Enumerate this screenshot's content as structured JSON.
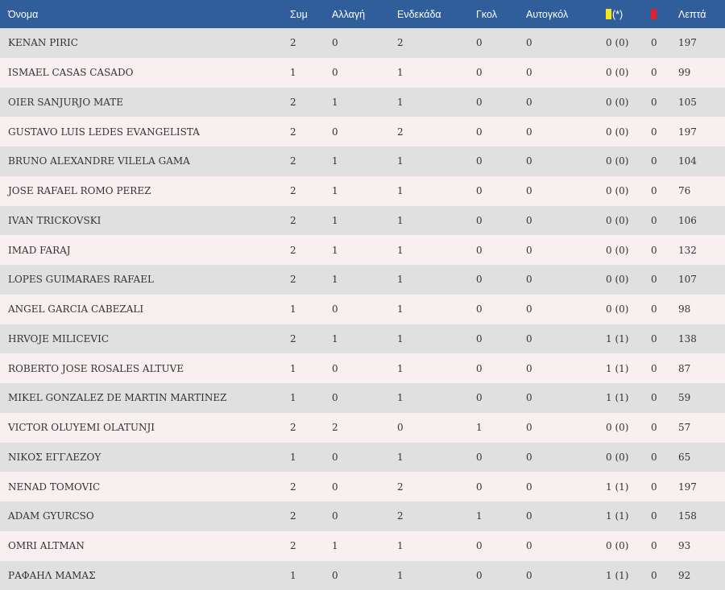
{
  "header": {
    "name": "Όνομα",
    "caps": "Συμ",
    "sub": "Αλλαγή",
    "starting": "Ενδεκάδα",
    "goals": "Γκολ",
    "own_goals": "Αυτογκόλ",
    "yellow_suffix": "(*)",
    "yellow_icon": "yellow-card-icon",
    "red_icon": "red-card-icon",
    "minutes": "Λεπτά"
  },
  "colors": {
    "header_bg": "#2f5e9b",
    "row_odd": "#e0e0e0",
    "row_even": "#f7eff0",
    "yellow_card": "#f5e51b",
    "red_card": "#e3202a"
  },
  "rows": [
    {
      "name": "KENAN PIRIC",
      "caps": "2",
      "sub": "0",
      "starting": "2",
      "goals": "0",
      "own_goals": "0",
      "yellow": "0 (0)",
      "red": "0",
      "minutes": "197"
    },
    {
      "name": "ISMAEL CASAS CASADO",
      "caps": "1",
      "sub": "0",
      "starting": "1",
      "goals": "0",
      "own_goals": "0",
      "yellow": "0 (0)",
      "red": "0",
      "minutes": "99"
    },
    {
      "name": "OIER SANJURJO MATE",
      "caps": "2",
      "sub": "1",
      "starting": "1",
      "goals": "0",
      "own_goals": "0",
      "yellow": "0 (0)",
      "red": "0",
      "minutes": "105"
    },
    {
      "name": "GUSTAVO LUIS LEDES EVANGELISTA",
      "caps": "2",
      "sub": "0",
      "starting": "2",
      "goals": "0",
      "own_goals": "0",
      "yellow": "0 (0)",
      "red": "0",
      "minutes": "197"
    },
    {
      "name": "BRUNO ALEXANDRE VILELA GAMA",
      "caps": "2",
      "sub": "1",
      "starting": "1",
      "goals": "0",
      "own_goals": "0",
      "yellow": "0 (0)",
      "red": "0",
      "minutes": "104"
    },
    {
      "name": "JOSE RAFAEL ROMO PEREZ",
      "caps": "2",
      "sub": "1",
      "starting": "1",
      "goals": "0",
      "own_goals": "0",
      "yellow": "0 (0)",
      "red": "0",
      "minutes": "76"
    },
    {
      "name": "IVAN TRICKOVSKI",
      "caps": "2",
      "sub": "1",
      "starting": "1",
      "goals": "0",
      "own_goals": "0",
      "yellow": "0 (0)",
      "red": "0",
      "minutes": "106"
    },
    {
      "name": "IMAD FARAJ",
      "caps": "2",
      "sub": "1",
      "starting": "1",
      "goals": "0",
      "own_goals": "0",
      "yellow": "0 (0)",
      "red": "0",
      "minutes": "132"
    },
    {
      "name": "LOPES GUIMARAES RAFAEL",
      "caps": "2",
      "sub": "1",
      "starting": "1",
      "goals": "0",
      "own_goals": "0",
      "yellow": "0 (0)",
      "red": "0",
      "minutes": "107"
    },
    {
      "name": "ANGEL GARCIA CABEZALI",
      "caps": "1",
      "sub": "0",
      "starting": "1",
      "goals": "0",
      "own_goals": "0",
      "yellow": "0 (0)",
      "red": "0",
      "minutes": "98"
    },
    {
      "name": "HRVOJE MILICEVIC",
      "caps": "2",
      "sub": "1",
      "starting": "1",
      "goals": "0",
      "own_goals": "0",
      "yellow": "1 (1)",
      "red": "0",
      "minutes": "138"
    },
    {
      "name": "ROBERTO JOSE ROSALES ALTUVE",
      "caps": "1",
      "sub": "0",
      "starting": "1",
      "goals": "0",
      "own_goals": "0",
      "yellow": "1 (1)",
      "red": "0",
      "minutes": "87"
    },
    {
      "name": "MIKEL GONZALEZ DE MARTIN MARTINEZ",
      "caps": "1",
      "sub": "0",
      "starting": "1",
      "goals": "0",
      "own_goals": "0",
      "yellow": "1 (1)",
      "red": "0",
      "minutes": "59"
    },
    {
      "name": "VICTOR OLUYEMI OLATUNJI",
      "caps": "2",
      "sub": "2",
      "starting": "0",
      "goals": "1",
      "own_goals": "0",
      "yellow": "0 (0)",
      "red": "0",
      "minutes": "57"
    },
    {
      "name": "ΝΙΚΟΣ ΕΓΓΛΕΖΟΥ",
      "caps": "1",
      "sub": "0",
      "starting": "1",
      "goals": "0",
      "own_goals": "0",
      "yellow": "0 (0)",
      "red": "0",
      "minutes": "65"
    },
    {
      "name": "NENAD TOMOVIC",
      "caps": "2",
      "sub": "0",
      "starting": "2",
      "goals": "0",
      "own_goals": "0",
      "yellow": "1 (1)",
      "red": "0",
      "minutes": "197"
    },
    {
      "name": "ADAM GYURCSO",
      "caps": "2",
      "sub": "0",
      "starting": "2",
      "goals": "1",
      "own_goals": "0",
      "yellow": "1 (1)",
      "red": "0",
      "minutes": "158"
    },
    {
      "name": "OMRI ALTMAN",
      "caps": "2",
      "sub": "1",
      "starting": "1",
      "goals": "0",
      "own_goals": "0",
      "yellow": "0 (0)",
      "red": "0",
      "minutes": "93"
    },
    {
      "name": "ΡΑΦΑΗΛ ΜΑΜΑΣ",
      "caps": "1",
      "sub": "0",
      "starting": "1",
      "goals": "0",
      "own_goals": "0",
      "yellow": "1 (1)",
      "red": "0",
      "minutes": "92"
    }
  ]
}
